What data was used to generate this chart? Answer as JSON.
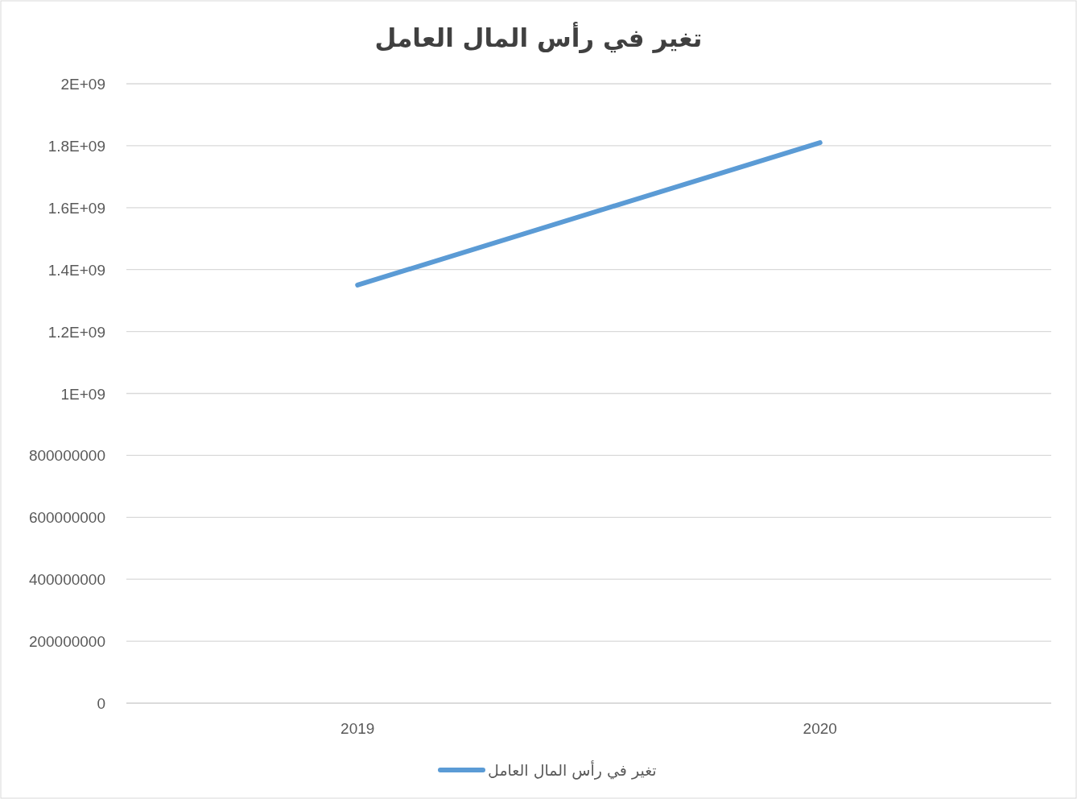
{
  "chart_data": {
    "type": "line",
    "title": "تغير في رأس المال العامل",
    "categories": [
      "2019",
      "2020"
    ],
    "series": [
      {
        "name": "تغير في رأس المال العامل",
        "color": "#5b9bd5",
        "values": [
          1350000000,
          1810000000
        ]
      }
    ],
    "ylim": [
      0,
      2000000000
    ],
    "yticks": [
      0,
      {
        "value": 200000000,
        "label": "200000000"
      },
      {
        "value": 400000000,
        "label": "400000000"
      },
      {
        "value": 600000000,
        "label": "600000000"
      },
      {
        "value": 800000000,
        "label": "800000000"
      },
      {
        "value": 1000000000,
        "label": "1E+09"
      },
      {
        "value": 1200000000,
        "label": "1.2E+09"
      },
      {
        "value": 1400000000,
        "label": "1.4E+09"
      },
      {
        "value": 1600000000,
        "label": "1.6E+09"
      },
      {
        "value": 1800000000,
        "label": "1.8E+09"
      },
      {
        "value": 2000000000,
        "label": "2E+09"
      }
    ],
    "grid": "y",
    "legend": "bottom",
    "marker": "none",
    "line_style": "solid"
  }
}
